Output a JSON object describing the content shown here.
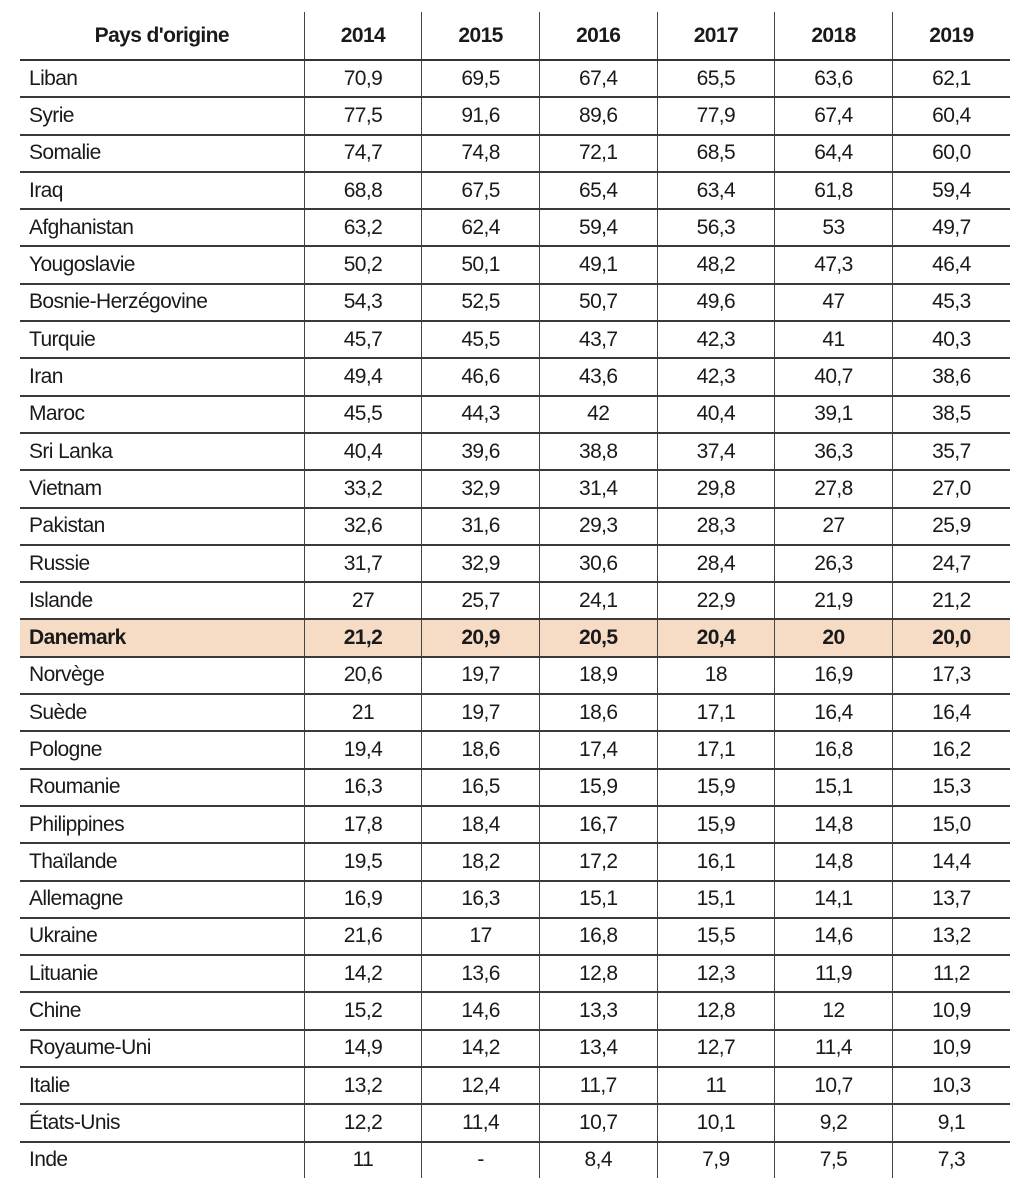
{
  "table": {
    "header": [
      "Pays d'origine",
      "2014",
      "2015",
      "2016",
      "2017",
      "2018",
      "2019"
    ],
    "highlight_color": "#f6dcc5",
    "highlighted_row": "Danemark",
    "rows": [
      [
        "Liban",
        "70,9",
        "69,5",
        "67,4",
        "65,5",
        "63,6",
        "62,1"
      ],
      [
        "Syrie",
        "77,5",
        "91,6",
        "89,6",
        "77,9",
        "67,4",
        "60,4"
      ],
      [
        "Somalie",
        "74,7",
        "74,8",
        "72,1",
        "68,5",
        "64,4",
        "60,0"
      ],
      [
        "Iraq",
        "68,8",
        "67,5",
        "65,4",
        "63,4",
        "61,8",
        "59,4"
      ],
      [
        "Afghanistan",
        "63,2",
        "62,4",
        "59,4",
        "56,3",
        "53",
        "49,7"
      ],
      [
        "Yougoslavie",
        "50,2",
        "50,1",
        "49,1",
        "48,2",
        "47,3",
        "46,4"
      ],
      [
        "Bosnie-Herzégovine",
        "54,3",
        "52,5",
        "50,7",
        "49,6",
        "47",
        "45,3"
      ],
      [
        "Turquie",
        "45,7",
        "45,5",
        "43,7",
        "42,3",
        "41",
        "40,3"
      ],
      [
        "Iran",
        "49,4",
        "46,6",
        "43,6",
        "42,3",
        "40,7",
        "38,6"
      ],
      [
        "Maroc",
        "45,5",
        "44,3",
        "42",
        "40,4",
        "39,1",
        "38,5"
      ],
      [
        "Sri Lanka",
        "40,4",
        "39,6",
        "38,8",
        "37,4",
        "36,3",
        "35,7"
      ],
      [
        "Vietnam",
        "33,2",
        "32,9",
        "31,4",
        "29,8",
        "27,8",
        "27,0"
      ],
      [
        "Pakistan",
        "32,6",
        "31,6",
        "29,3",
        "28,3",
        "27",
        "25,9"
      ],
      [
        "Russie",
        "31,7",
        "32,9",
        "30,6",
        "28,4",
        "26,3",
        "24,7"
      ],
      [
        "Islande",
        "27",
        "25,7",
        "24,1",
        "22,9",
        "21,9",
        "21,2"
      ],
      [
        "Danemark",
        "21,2",
        "20,9",
        "20,5",
        "20,4",
        "20",
        "20,0"
      ],
      [
        "Norvège",
        "20,6",
        "19,7",
        "18,9",
        "18",
        "16,9",
        "17,3"
      ],
      [
        "Suède",
        "21",
        "19,7",
        "18,6",
        "17,1",
        "16,4",
        "16,4"
      ],
      [
        "Pologne",
        "19,4",
        "18,6",
        "17,4",
        "17,1",
        "16,8",
        "16,2"
      ],
      [
        "Roumanie",
        "16,3",
        "16,5",
        "15,9",
        "15,9",
        "15,1",
        "15,3"
      ],
      [
        "Philippines",
        "17,8",
        "18,4",
        "16,7",
        "15,9",
        "14,8",
        "15,0"
      ],
      [
        "Thaïlande",
        "19,5",
        "18,2",
        "17,2",
        "16,1",
        "14,8",
        "14,4"
      ],
      [
        "Allemagne",
        "16,9",
        "16,3",
        "15,1",
        "15,1",
        "14,1",
        "13,7"
      ],
      [
        "Ukraine",
        "21,6",
        "17",
        "16,8",
        "15,5",
        "14,6",
        "13,2"
      ],
      [
        "Lituanie",
        "14,2",
        "13,6",
        "12,8",
        "12,3",
        "11,9",
        "11,2"
      ],
      [
        "Chine",
        "15,2",
        "14,6",
        "13,3",
        "12,8",
        "12",
        "10,9"
      ],
      [
        "Royaume-Uni",
        "14,9",
        "14,2",
        "13,4",
        "12,7",
        "11,4",
        "10,9"
      ],
      [
        "Italie",
        "13,2",
        "12,4",
        "11,7",
        "11",
        "10,7",
        "10,3"
      ],
      [
        "États-Unis",
        "12,2",
        "11,4",
        "10,7",
        "10,1",
        "9,2",
        "9,1"
      ],
      [
        "Inde",
        "11",
        "-",
        "8,4",
        "7,9",
        "7,5",
        "7,3"
      ]
    ]
  }
}
